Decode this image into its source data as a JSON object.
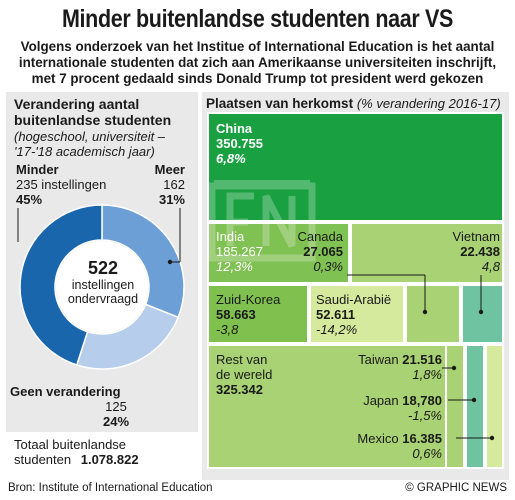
{
  "header": {
    "title": "Minder buitenlandse studenten naar VS",
    "subtitle_lines": [
      "Volgens onderzoek van het Institue of International Education is het aantal",
      "internationale studenten dat zich aan Amerikaanse universiteiten inschrijft,",
      "met 7 procent gedaald sinds Donald Trump tot president werd gekozen"
    ]
  },
  "donut": {
    "heading_lines": [
      "Verandering aantal",
      "buitenlandse studenten"
    ],
    "note_lines": [
      "(hogeschool, universiteit –",
      "'17-'18 academisch jaar)"
    ],
    "center_value": "522",
    "center_text_lines": [
      "instellingen",
      "ondervraagd"
    ],
    "minder": {
      "label": "Minder",
      "count": "235 instellingen",
      "pct": "45%"
    },
    "meer": {
      "label": "Meer",
      "count": "162",
      "pct": "31%"
    },
    "geen": {
      "label": "Geen verandering",
      "count": "125",
      "pct": "24%"
    },
    "total_label_lines": [
      "Totaal buitenlandse",
      "studenten"
    ],
    "total_value": "1.078.822"
  },
  "treemap": {
    "heading": "Plaatsen van herkomst",
    "heading_note": "(% verandering 2016-17)",
    "tiles": [
      {
        "name": "China",
        "value": "350.755",
        "change": "6,8%"
      },
      {
        "name": "India",
        "value": "185.267",
        "change": "12,3%"
      },
      {
        "name": "Canada",
        "value": "27.065",
        "change": "0,3%"
      },
      {
        "name": "Vietnam",
        "value": "22.438",
        "change": "4,8"
      },
      {
        "name": "Zuid-Korea",
        "value": "58.663",
        "change": "-3,8"
      },
      {
        "name": "Saudi-Arabië",
        "value": "52.611",
        "change": "-14,2%"
      },
      {
        "name_lines": [
          "Rest van",
          "de wereld"
        ],
        "value": "325.342"
      },
      {
        "name": "Taiwan",
        "value": "21.516",
        "change": "1,8%"
      },
      {
        "name": "Japan",
        "value": "18,780",
        "change": "-1,5%"
      },
      {
        "name": "Mexico",
        "value": "16.385",
        "change": "0,6%"
      }
    ]
  },
  "footer": {
    "source": "Bron: Institute of International Education",
    "credit": "© GRAPHIC NEWS"
  },
  "chart_data": [
    {
      "type": "pie",
      "title": "Verandering aantal buitenlandse studenten",
      "categories": [
        "Minder",
        "Meer",
        "Geen verandering"
      ],
      "values": [
        235,
        162,
        125
      ],
      "percentages": [
        45,
        31,
        24
      ],
      "colors": [
        "#1a66ad",
        "#6d9fd7",
        "#b6cdec"
      ]
    },
    {
      "type": "treemap",
      "title": "Plaatsen van herkomst",
      "categories": [
        "China",
        "India",
        "Zuid-Korea",
        "Saudi-Arabië",
        "Canada",
        "Vietnam",
        "Taiwan",
        "Japan",
        "Mexico",
        "Rest van de wereld"
      ],
      "values": [
        350755,
        185267,
        58663,
        52611,
        27065,
        22438,
        21516,
        18780,
        16385,
        325342
      ],
      "change_pct": [
        6.8,
        12.3,
        -3.8,
        -14.2,
        0.3,
        4.8,
        1.8,
        -1.5,
        0.6,
        null
      ],
      "colors": {
        "increase": "#19a040",
        "decrease": "#7fc04f",
        "small": "#6fc3a0"
      }
    }
  ]
}
